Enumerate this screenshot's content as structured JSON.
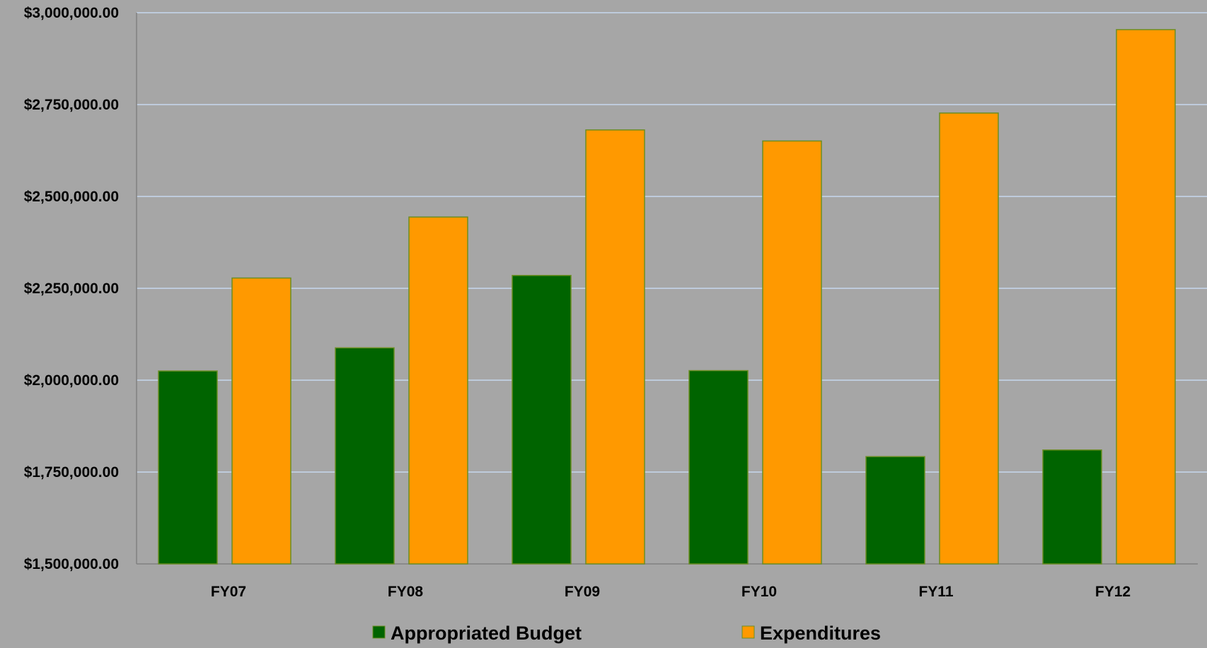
{
  "chart_data": {
    "type": "bar",
    "categories": [
      "FY07",
      "FY08",
      "FY09",
      "FY10",
      "FY11",
      "FY12"
    ],
    "series": [
      {
        "name": "Appropriated Budget",
        "values": [
          2025000,
          2088000,
          2285000,
          2026000,
          1792000,
          1810000
        ],
        "color": "#006400"
      },
      {
        "name": "Expenditures",
        "values": [
          2278000,
          2444000,
          2681000,
          2651000,
          2727000,
          2954000
        ],
        "color": "#ff9900"
      }
    ],
    "y_ticks": [
      "$1,500,000.00",
      "$1,750,000.00",
      "$2,000,000.00",
      "$2,250,000.00",
      "$2,500,000.00",
      "$2,750,000.00",
      "$3,000,000.00"
    ],
    "y_tick_values": [
      1500000,
      1750000,
      2000000,
      2250000,
      2500000,
      2750000,
      3000000
    ],
    "ylim": [
      1500000,
      3000000
    ],
    "grid": true,
    "legend_position": "bottom",
    "colors": {
      "background": "#a6a6a6",
      "gridline": "#c5d7ee",
      "axis": "#808080",
      "bar_border": "#6b8e23"
    }
  }
}
